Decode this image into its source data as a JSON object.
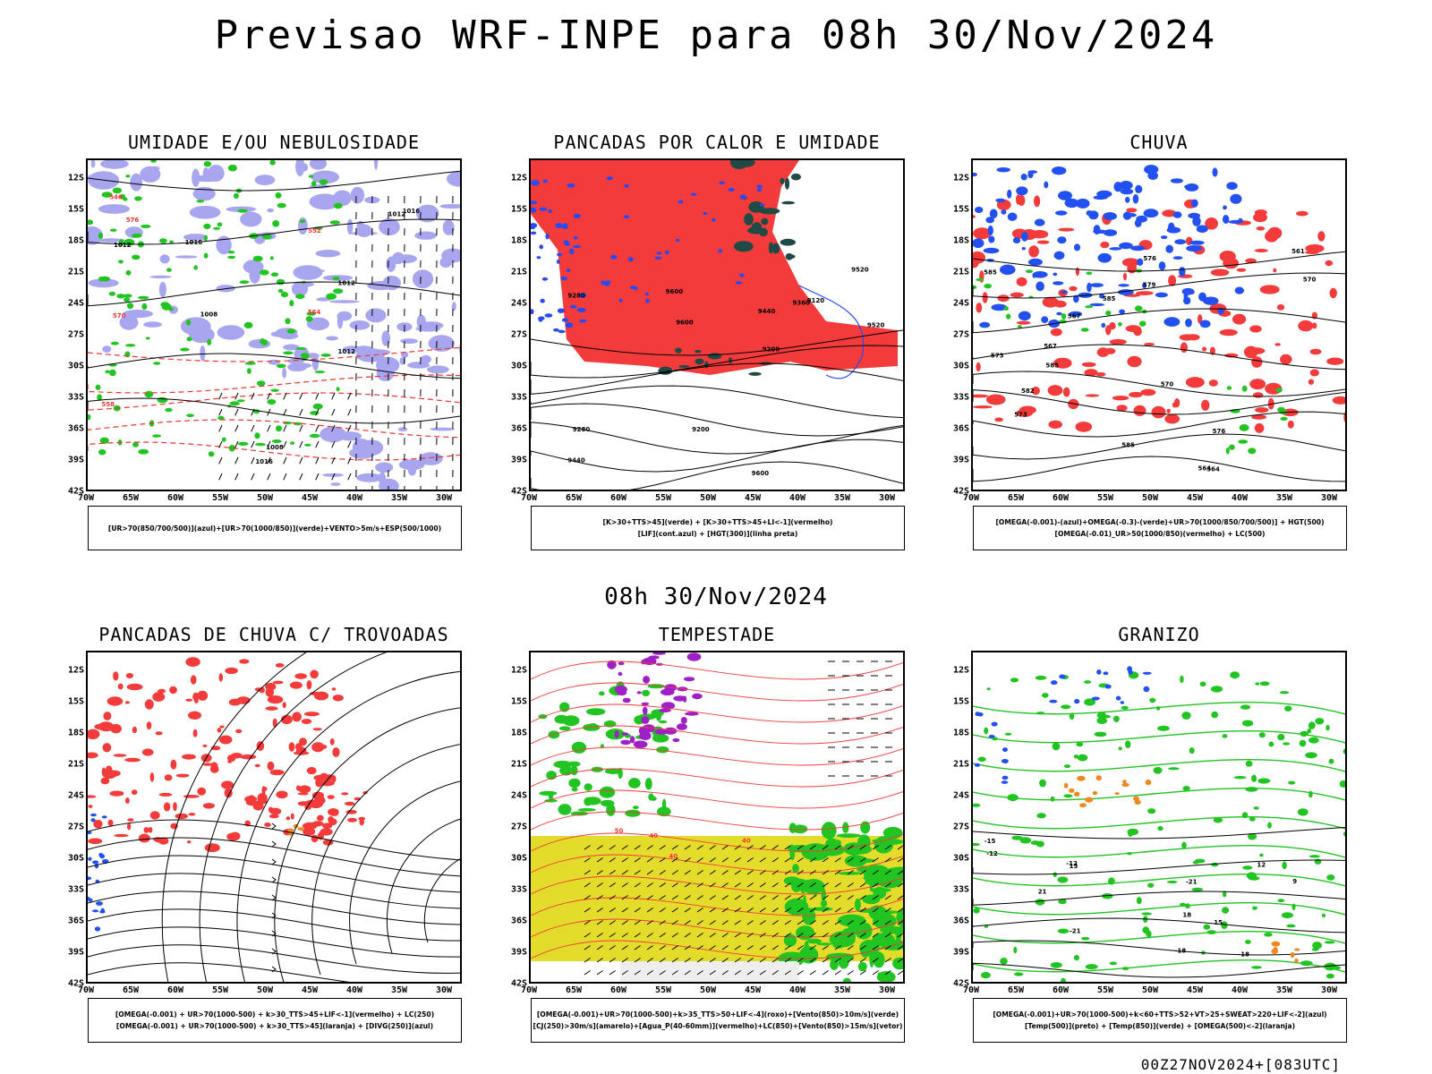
{
  "header": {
    "title": "Previsao WRF-INPE  para 08h 30/Nov/2024",
    "mid_title": "08h 30/Nov/2024"
  },
  "footer": {
    "run_label": "00Z27NOV2024+[083UTC]"
  },
  "axes": {
    "lat_ticks": [
      "12S",
      "15S",
      "18S",
      "21S",
      "24S",
      "27S",
      "30S",
      "33S",
      "36S",
      "39S",
      "42S"
    ],
    "lon_ticks": [
      "70W",
      "65W",
      "60W",
      "55W",
      "50W",
      "45W",
      "40W",
      "35W",
      "30W"
    ]
  },
  "panels": [
    {
      "id": "umidade",
      "title": "UMIDADE E/OU NEBULOSIDADE",
      "legend": [
        "[UR>70(850/700/500)](azul)+[UR>70(1000/850)](verde)+VENTO>5m/s+ESP(500/1000)"
      ],
      "contour_labels": [
        "1012",
        "1016",
        "1012",
        "1008",
        "1012",
        "1016",
        "1012",
        "1008",
        "1016",
        "576",
        "570",
        "564",
        "558",
        "552",
        "546"
      ]
    },
    {
      "id": "pancadas-calor",
      "title": "PANCADAS POR CALOR E UMIDADE",
      "legend": [
        "[K>30+TTS>45](verde) + [K>30+TTS>45+LI<-1](vermelho)",
        "[LIF](cont.azul) + [HGT(300)](linha preta)"
      ],
      "contour_labels": [
        "9600",
        "9600",
        "9520",
        "9520",
        "9440",
        "9440",
        "9360",
        "9280",
        "9280",
        "9200",
        "9120",
        "9200",
        "9600"
      ]
    },
    {
      "id": "chuva",
      "title": "CHUVA",
      "legend": [
        "[OMEGA(-0.001)-(azul)+OMEGA(-0.3)-(verde)+UR>70(1000/850/700/500)] + HGT(500)",
        "[OMEGA(-0.01)_UR>50(1000/850)(vermelho) + LC(500)"
      ],
      "contour_labels": [
        "585",
        "585",
        "585",
        "585",
        "582",
        "579",
        "576",
        "573",
        "570",
        "567",
        "564",
        "561",
        "576",
        "573",
        "570",
        "567",
        "564"
      ]
    },
    {
      "id": "pancadas-trovoadas",
      "title": "PANCADAS DE CHUVA C/ TROVOADAS",
      "legend": [
        "[OMEGA(-0.001) + UR>70(1000-500) + k>30_TTS>45+LIF<-1](vermelho) + LC(250)",
        "[OMEGA(-0.001) + UR>70(1000-500) + k>30_TTS>45](laranja) + [DIVG(250)](azul)"
      ],
      "contour_labels": []
    },
    {
      "id": "tempestade",
      "title": "TEMPESTADE",
      "legend": [
        "[OMEGA(-0.001)+UR>70(1000-500)+k>35_TTS>50+LIF<-4](roxo)+[Vento(850)>10m/s](verde)",
        "[CJ(250)>30m/s](amarelo)+[Agua_P(40-60mm)](vermelho)+LC(850)+[Vento(850)>15m/s](vetor)"
      ],
      "contour_labels": [
        "40",
        "40",
        "40",
        "50"
      ]
    },
    {
      "id": "granizo",
      "title": "GRANIZO",
      "legend": [
        "[OMEGA(-0.001)+UR>70(1000-500)+k<60+TTS>52+VT>25+SWEAT>220+LIF<-2](azul)",
        "[Temp(500)](preto) + [Temp(850)](verde) + [OMEGA(500)<-2](laranja)"
      ],
      "contour_labels": [
        "-12",
        "-15",
        "-18",
        "-21",
        "-12",
        "-18",
        "-21",
        "12",
        "15",
        "18",
        "15",
        "21",
        "9"
      ]
    }
  ],
  "colors": {
    "blue_fill": "#a9a6f0",
    "green": "#22c422",
    "red": "#f33b3b",
    "dark_teal": "#1f4a45",
    "blue_line": "#2a4af0",
    "yellow": "#e4dc2a",
    "purple": "#a020c8",
    "orange": "#ee8822",
    "map_border": "#000000"
  }
}
